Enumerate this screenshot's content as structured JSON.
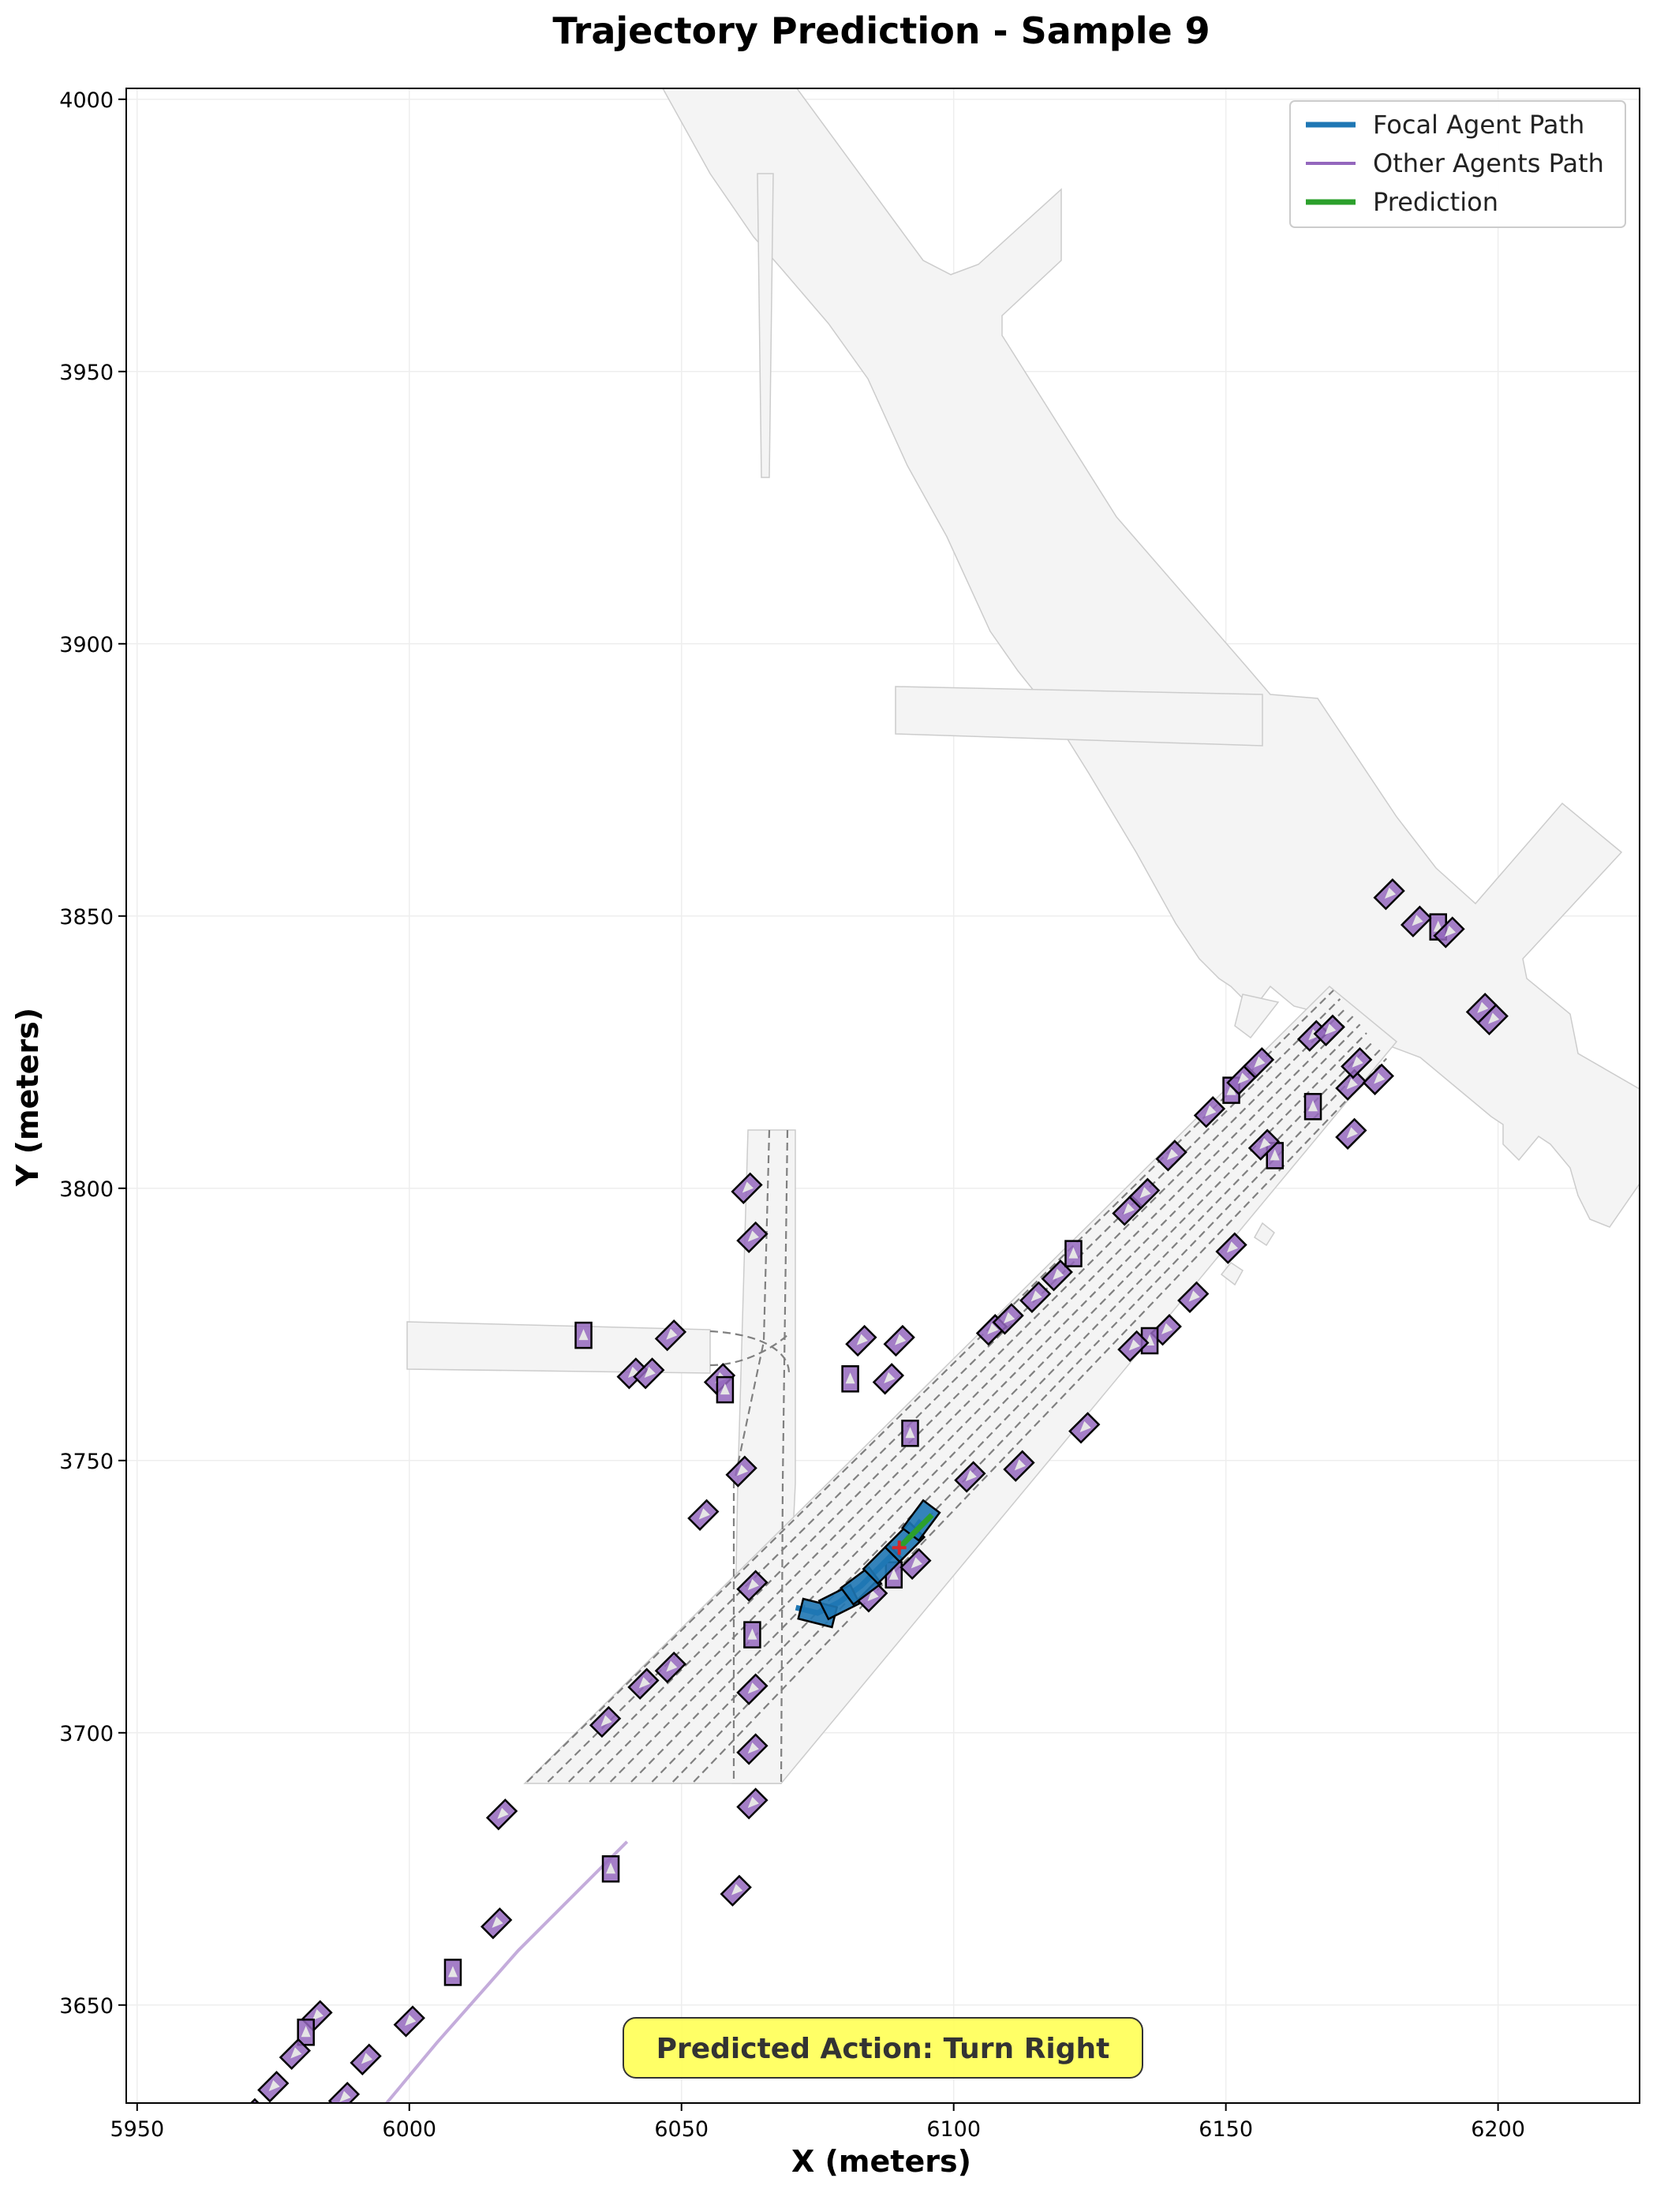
{
  "chart_data": {
    "type": "scatter",
    "title": "Trajectory Prediction - Sample 9",
    "xlabel": "X (meters)",
    "ylabel": "Y (meters)",
    "xlim": [
      5948,
      6226
    ],
    "ylim": [
      3632,
      4002
    ],
    "xticks": [
      5950,
      6000,
      6050,
      6100,
      6150,
      6200
    ],
    "yticks": [
      3650,
      3700,
      3750,
      3800,
      3850,
      3900,
      3950,
      4000
    ],
    "grid": true,
    "legend_position": "top-right",
    "legend": [
      {
        "label": "Focal Agent Path",
        "color": "#1f77b4"
      },
      {
        "label": "Other Agents Path",
        "color": "#9467bd"
      },
      {
        "label": "Prediction",
        "color": "#2ca02c"
      }
    ],
    "annotation": "Predicted Action: Turn Right",
    "colors": {
      "focal": "#1f77b4",
      "other": "#9467bd",
      "prediction": "#2ca02c",
      "road": "#f2f2f2",
      "lane": "#808080",
      "annotation_bg": "#ffff55"
    },
    "focal_path": [
      [
        6071,
        3723
      ],
      [
        6075,
        3722
      ],
      [
        6079,
        3724
      ],
      [
        6083,
        3727
      ],
      [
        6087,
        3731
      ],
      [
        6091,
        3735
      ],
      [
        6094,
        3739
      ]
    ],
    "prediction_path": [
      [
        6090,
        3734
      ],
      [
        6092,
        3736
      ],
      [
        6094,
        3738
      ],
      [
        6096,
        3740
      ]
    ],
    "other_agents": [
      [
        6032,
        3773
      ],
      [
        6048,
        3773
      ],
      [
        6041,
        3766
      ],
      [
        6044,
        3766
      ],
      [
        6057,
        3765
      ],
      [
        6058,
        3763
      ],
      [
        6062,
        3800
      ],
      [
        6063,
        3791
      ],
      [
        6083,
        3772
      ],
      [
        6090,
        3772
      ],
      [
        6081,
        3765
      ],
      [
        6088,
        3765
      ],
      [
        6061,
        3748
      ],
      [
        6054,
        3740
      ],
      [
        6063,
        3727
      ],
      [
        6063,
        3718
      ],
      [
        6063,
        3708
      ],
      [
        6063,
        3697
      ],
      [
        6063,
        3687
      ],
      [
        6060,
        3671
      ],
      [
        6037,
        3675
      ],
      [
        6017,
        3685
      ],
      [
        6036,
        3702
      ],
      [
        6043,
        3709
      ],
      [
        6048,
        3712
      ],
      [
        6092,
        3755
      ],
      [
        6107,
        3774
      ],
      [
        6110,
        3776
      ],
      [
        6115,
        3780
      ],
      [
        6119,
        3784
      ],
      [
        6122,
        3788
      ],
      [
        6132,
        3796
      ],
      [
        6135,
        3799
      ],
      [
        6140,
        3806
      ],
      [
        6147,
        3814
      ],
      [
        6151,
        3818
      ],
      [
        6153,
        3820
      ],
      [
        6156,
        3823
      ],
      [
        6166,
        3828
      ],
      [
        6169,
        3829
      ],
      [
        6166,
        3815
      ],
      [
        6173,
        3819
      ],
      [
        6178,
        3820
      ],
      [
        6174,
        3823
      ],
      [
        6173,
        3810
      ],
      [
        6159,
        3806
      ],
      [
        6157,
        3808
      ],
      [
        6151,
        3789
      ],
      [
        6144,
        3780
      ],
      [
        6139,
        3774
      ],
      [
        6136,
        3772
      ],
      [
        6133,
        3771
      ],
      [
        6124,
        3756
      ],
      [
        6112,
        3749
      ],
      [
        6103,
        3747
      ],
      [
        6089,
        3729
      ],
      [
        6085,
        3725
      ],
      [
        6093,
        3731
      ],
      [
        6180,
        3854
      ],
      [
        6185,
        3849
      ],
      [
        6189,
        3848
      ],
      [
        6191,
        3847
      ],
      [
        6197,
        3833
      ],
      [
        6199,
        3831
      ],
      [
        6016,
        3665
      ],
      [
        6008,
        3656
      ],
      [
        6000,
        3647
      ],
      [
        5992,
        3640
      ],
      [
        5988,
        3633
      ],
      [
        5983,
        3648
      ],
      [
        5981,
        3645
      ],
      [
        5979,
        3641
      ],
      [
        5975,
        3635
      ],
      [
        5971,
        3630
      ]
    ],
    "other_path": [
      [
        5975,
        3610
      ],
      [
        5990,
        3625
      ],
      [
        6005,
        3643
      ],
      [
        6020,
        3660
      ],
      [
        6040,
        3680
      ]
    ]
  }
}
